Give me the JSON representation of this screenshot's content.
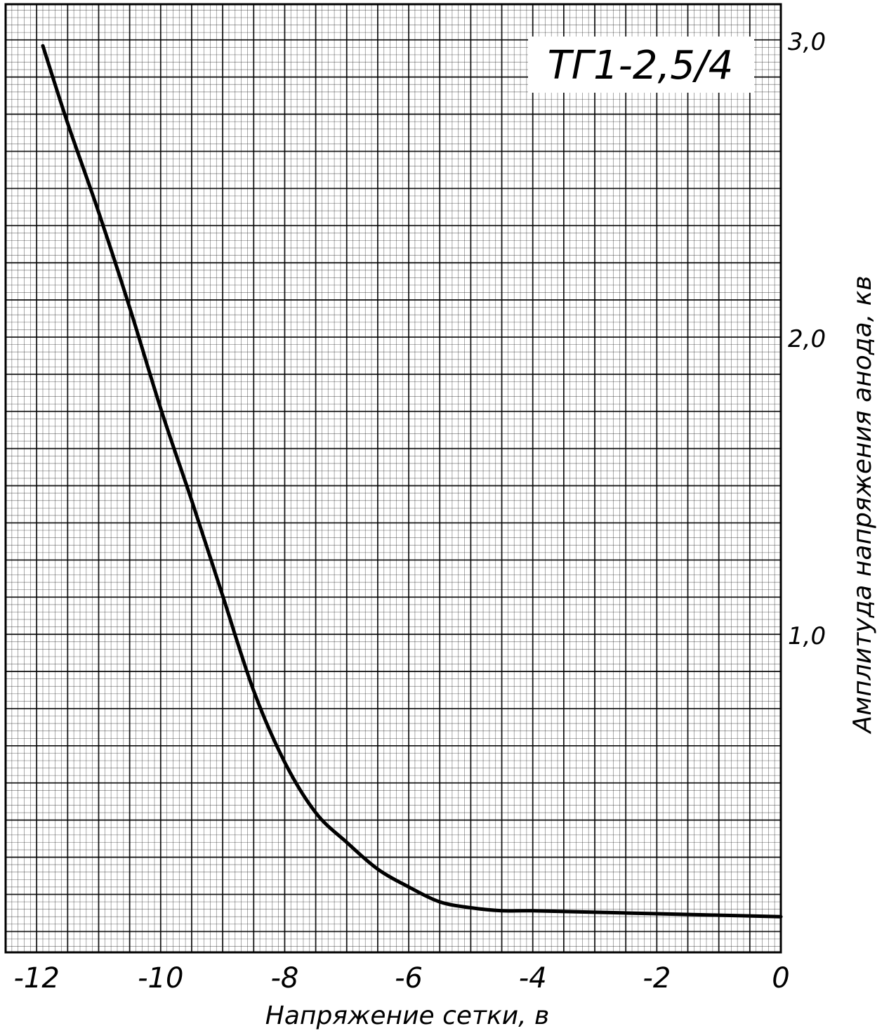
{
  "chart_data": {
    "type": "line",
    "title": "ТГ1-2,5/4",
    "xlabel": "Напряжение сетки, в",
    "ylabel": "Амплитуда напряжения анода, кв",
    "xlim": [
      -12.5,
      0
    ],
    "ylim": [
      -0.07,
      3.12
    ],
    "x_ticks": [
      -12,
      -10,
      -8,
      -6,
      -4,
      -2,
      0
    ],
    "x_tick_labels": [
      "-12",
      "-10",
      "-8",
      "-6",
      "-4",
      "-2",
      "0"
    ],
    "y_ticks": [
      1.0,
      2.0,
      3.0
    ],
    "y_tick_labels": [
      "1,0",
      "2,0",
      "3,0"
    ],
    "grid": true,
    "series": [
      {
        "x": [
          -11.9,
          -11.5,
          -11.0,
          -10.5,
          -10.0,
          -9.5,
          -9.0,
          -8.5,
          -8.0,
          -7.5,
          -7.0,
          -6.5,
          -6.0,
          -5.5,
          -5.0,
          -4.5,
          -4.0,
          -3.0,
          -2.0,
          -1.0,
          0.0
        ],
        "y": [
          2.98,
          2.72,
          2.42,
          2.1,
          1.76,
          1.45,
          1.13,
          0.81,
          0.57,
          0.4,
          0.3,
          0.21,
          0.15,
          0.1,
          0.08,
          0.07,
          0.07,
          0.065,
          0.06,
          0.055,
          0.05
        ]
      }
    ],
    "colors": {
      "curve": "#000000",
      "grid_major": "#000000",
      "grid_minor": "#222222"
    }
  }
}
